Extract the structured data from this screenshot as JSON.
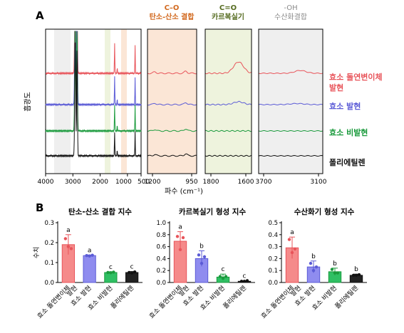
{
  "panels": {
    "a": "A",
    "b": "B"
  },
  "colors": {
    "mutant_expressed": "#e8545a",
    "enzyme_expressed": "#5b5bd6",
    "enzyme_not_expressed": "#1a9a3c",
    "polyethylene": "#111111",
    "co_region": "#fbe6d6",
    "carbonyl_region": "#eef3dd",
    "oh_region": "#efefef",
    "co_title": "#d2691e",
    "carbonyl_title": "#556b1f",
    "oh_title": "#8a8a8a"
  },
  "spectra": {
    "ylabel": "흡광도",
    "xlabel": "파수 (cm⁻¹)",
    "full_ticks": [
      "4000",
      "3000",
      "2000",
      "1000",
      "500"
    ],
    "windows": [
      {
        "title_top": "C–O",
        "title_bottom": "탄소-산소 결합",
        "ticks": [
          "1200",
          "950"
        ]
      },
      {
        "title_top": "C=O",
        "title_bottom": "카르복실기",
        "ticks": [
          "1800",
          "1600"
        ]
      },
      {
        "title_top": "-OH",
        "title_bottom": "수산화결합",
        "ticks": [
          "3700",
          "3100"
        ]
      }
    ],
    "legend": [
      {
        "line1": "효소 돌연변이체",
        "line2": "발현"
      },
      {
        "line1": "효소 발현",
        "line2": ""
      },
      {
        "line1": "효소 비발현",
        "line2": ""
      },
      {
        "line1": "폴리에틸렌",
        "line2": ""
      }
    ]
  },
  "chart_data": [
    {
      "type": "bar",
      "title": "탄소-산소 결합 지수",
      "ylabel": "수치",
      "ylim": [
        0,
        0.3
      ],
      "yticks": [
        "0.0",
        "0.1",
        "0.2",
        "0.3"
      ],
      "categories": [
        "효소 돌연변이체 발현",
        "효소 발현",
        "효소 비발현",
        "폴리에틸렌"
      ],
      "values": [
        0.19,
        0.135,
        0.05,
        0.05
      ],
      "errors": [
        0.05,
        0.003,
        0.004,
        0.005
      ],
      "letters": [
        "a",
        "a",
        "c",
        "c"
      ],
      "points": [
        [
          0.22,
          0.18,
          0.17
        ],
        [
          0.135,
          0.133,
          0.137
        ],
        [
          0.05,
          0.049,
          0.052
        ],
        [
          0.05,
          0.048,
          0.053
        ]
      ]
    },
    {
      "type": "bar",
      "title": "카르복실기 형성 지수",
      "ylabel": "",
      "ylim": [
        0,
        1.0
      ],
      "yticks": [
        "0.0",
        "0.2",
        "0.4",
        "0.6",
        "0.8",
        "1.0"
      ],
      "categories": [
        "효소 돌연변이체 발현",
        "효소 발현",
        "효소 비발현",
        "폴리에틸렌"
      ],
      "values": [
        0.69,
        0.4,
        0.09,
        0.02
      ],
      "errors": [
        0.16,
        0.13,
        0.05,
        0.01
      ],
      "letters": [
        "a",
        "b",
        "c",
        "c"
      ],
      "points": [
        [
          0.77,
          0.55,
          0.75
        ],
        [
          0.46,
          0.32,
          0.43
        ],
        [
          0.1,
          0.07,
          0.1
        ],
        [
          0.02,
          0.02,
          0.03
        ]
      ]
    },
    {
      "type": "bar",
      "title": "수산화기 형성 지수",
      "ylabel": "",
      "ylim": [
        0,
        0.5
      ],
      "yticks": [
        "0.0",
        "0.1",
        "0.2",
        "0.3",
        "0.4",
        "0.5"
      ],
      "categories": [
        "효소 돌연변이체 발현",
        "효소 발현",
        "효소 비발현",
        "폴리에틸렌"
      ],
      "values": [
        0.29,
        0.13,
        0.09,
        0.06
      ],
      "errors": [
        0.09,
        0.05,
        0.03,
        0.01
      ],
      "letters": [
        "a",
        "b",
        "b",
        "b"
      ],
      "points": [
        [
          0.36,
          0.25,
          0.28
        ],
        [
          0.16,
          0.1,
          0.13
        ],
        [
          0.11,
          0.08,
          0.08
        ],
        [
          0.06,
          0.06,
          0.065
        ]
      ]
    }
  ]
}
